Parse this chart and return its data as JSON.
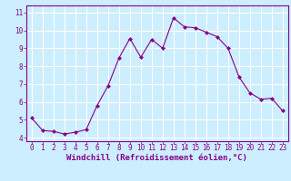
{
  "x": [
    0,
    1,
    2,
    3,
    4,
    5,
    6,
    7,
    8,
    9,
    10,
    11,
    12,
    13,
    14,
    15,
    16,
    17,
    18,
    19,
    20,
    21,
    22,
    23
  ],
  "y": [
    5.1,
    4.4,
    4.35,
    4.2,
    4.3,
    4.45,
    5.8,
    6.9,
    8.45,
    9.55,
    8.5,
    9.5,
    9.0,
    10.7,
    10.2,
    10.15,
    9.9,
    9.65,
    9.0,
    7.4,
    6.5,
    6.15,
    6.2,
    5.5
  ],
  "line_color": "#880088",
  "marker": "D",
  "marker_size": 2,
  "bg_color": "#cceeff",
  "grid_color": "#ffffff",
  "xlabel": "Windchill (Refroidissement éolien,°C)",
  "xlabel_color": "#880088",
  "xlim": [
    -0.5,
    23.5
  ],
  "ylim": [
    3.8,
    11.4
  ],
  "xticks": [
    0,
    1,
    2,
    3,
    4,
    5,
    6,
    7,
    8,
    9,
    10,
    11,
    12,
    13,
    14,
    15,
    16,
    17,
    18,
    19,
    20,
    21,
    22,
    23
  ],
  "yticks": [
    4,
    5,
    6,
    7,
    8,
    9,
    10,
    11
  ],
  "tick_fontsize": 5.5,
  "xlabel_fontsize": 6.5
}
